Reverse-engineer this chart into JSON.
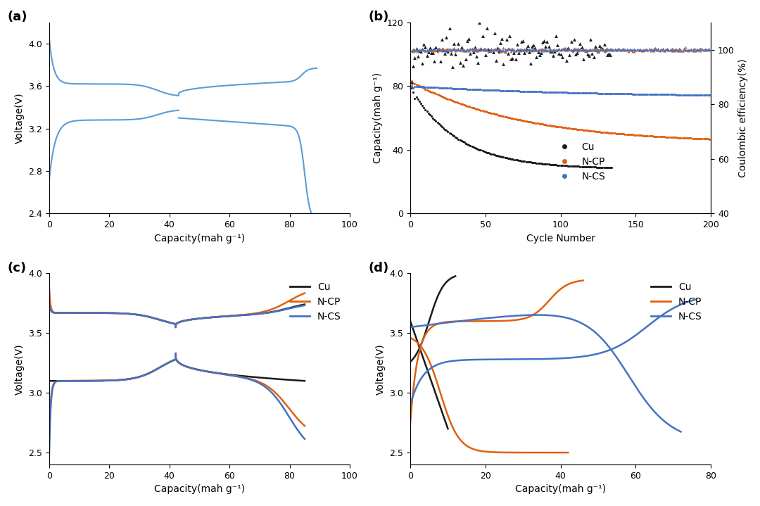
{
  "fig_bg": "#ffffff",
  "panel_labels": [
    "(a)",
    "(b)",
    "(c)",
    "(d)"
  ],
  "panel_label_fontsize": 13,
  "axis_label_fontsize": 10,
  "tick_label_fontsize": 9,
  "legend_fontsize": 10,
  "line_color_blue": "#5b9bd5",
  "line_color_cu": "#1a1a1a",
  "line_color_ncp": "#e06010",
  "line_color_ncs": "#4472c4",
  "subplot_a": {
    "xlabel": "Capacity(mah g⁻¹)",
    "ylabel": "Voltage(V)",
    "xlim": [
      0,
      100
    ],
    "ylim": [
      2.4,
      4.2
    ],
    "yticks": [
      2.4,
      2.8,
      3.2,
      3.6,
      4.0
    ],
    "xticks": [
      0,
      20,
      40,
      60,
      80,
      100
    ]
  },
  "subplot_b": {
    "xlabel": "Cycle Number",
    "ylabel": "Capacity(mah g⁻¹)",
    "ylabel2": "Coulombic efficiency(%)",
    "xlim": [
      0,
      200
    ],
    "ylim": [
      0,
      120
    ],
    "ylim2": [
      40,
      110
    ],
    "yticks": [
      0,
      40,
      80,
      120
    ],
    "yticks2": [
      40,
      60,
      80,
      100
    ],
    "xticks": [
      0,
      50,
      100,
      150,
      200
    ]
  },
  "subplot_c": {
    "xlabel": "Capacity(mah g⁻¹)",
    "ylabel": "Voltage(V)",
    "xlim": [
      0,
      100
    ],
    "ylim": [
      2.4,
      4.0
    ],
    "yticks": [
      2.5,
      3.0,
      3.5,
      4.0
    ],
    "xticks": [
      0,
      20,
      40,
      60,
      80,
      100
    ]
  },
  "subplot_d": {
    "xlabel": "Capacity(mah g⁻¹)",
    "ylabel": "Voltage(V)",
    "xlim": [
      0,
      80
    ],
    "ylim": [
      2.4,
      4.0
    ],
    "yticks": [
      2.5,
      3.0,
      3.5,
      4.0
    ],
    "xticks": [
      0,
      20,
      40,
      60,
      80
    ]
  }
}
